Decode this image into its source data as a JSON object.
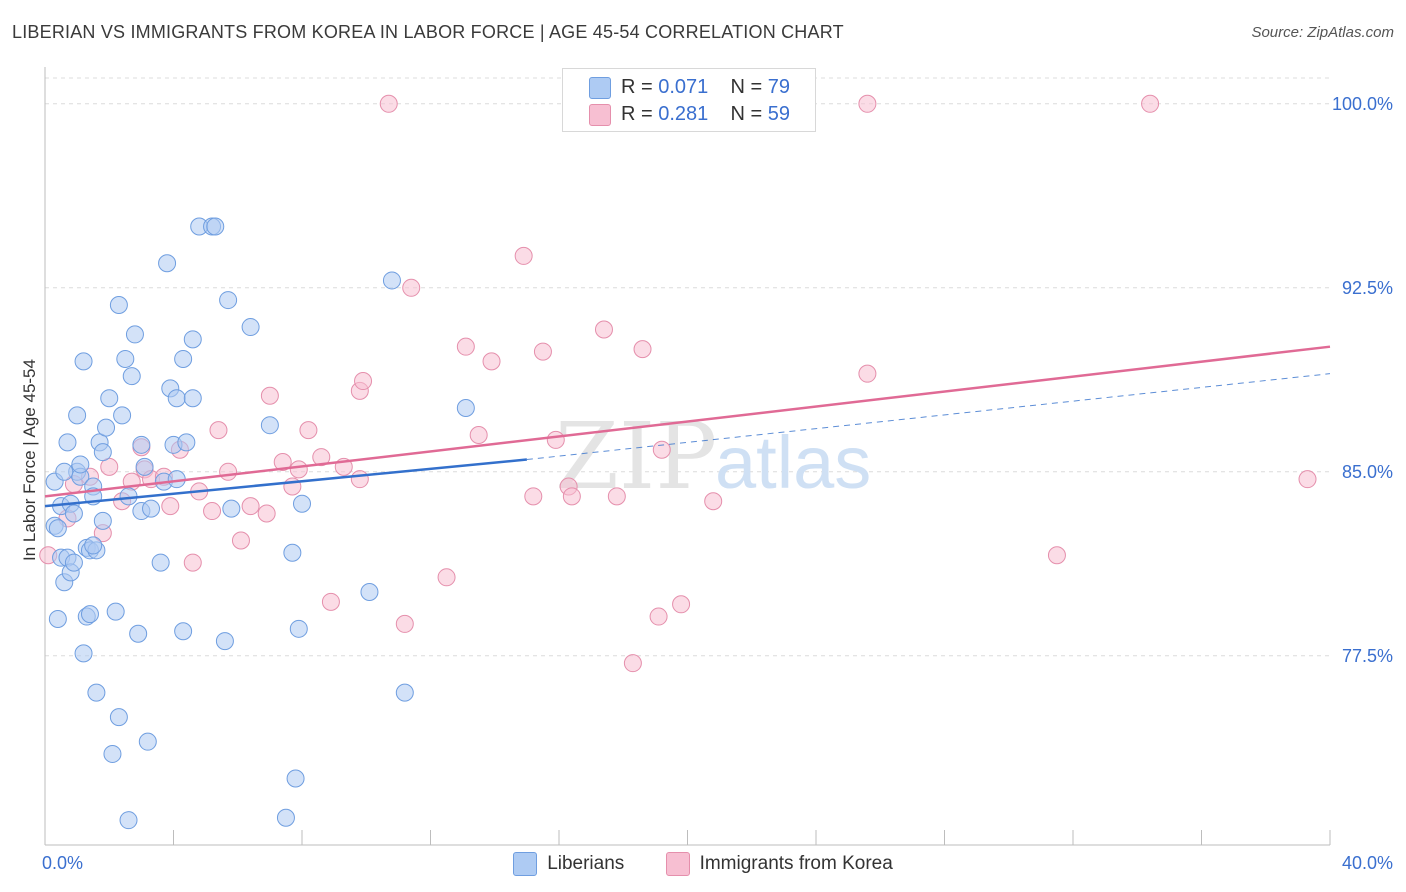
{
  "title": "LIBERIAN VS IMMIGRANTS FROM KOREA IN LABOR FORCE | AGE 45-54 CORRELATION CHART",
  "source": "Source: ZipAtlas.com",
  "watermark": {
    "zip": "ZIP",
    "atlas": "atlas"
  },
  "legend": {
    "series1": {
      "r_label": "R =",
      "r_value": "0.071",
      "n_label": "N =",
      "n_value": "79"
    },
    "series2": {
      "r_label": "R =",
      "r_value": "0.281",
      "n_label": "N =",
      "n_value": "59"
    }
  },
  "bottom_legend": {
    "series1": "Liberians",
    "series2": "Immigrants from Korea"
  },
  "colors": {
    "blue_fill": "#aecbf3",
    "blue_stroke": "#6f9ee0",
    "blue_line": "#3370cc",
    "pink_fill": "#f7bfd2",
    "pink_stroke": "#e58fac",
    "pink_line": "#e06a95",
    "tick_text": "#3a6fcf"
  },
  "chart_data": {
    "type": "scatter",
    "title": "LIBERIAN VS IMMIGRANTS FROM KOREA IN LABOR FORCE | AGE 45-54 CORRELATION CHART",
    "xlabel": "",
    "ylabel": "In Labor Force | Age 45-54",
    "xlim": [
      0,
      40
    ],
    "ylim": [
      70.4,
      101.5
    ],
    "x_tick_labels": [
      "0.0%",
      "40.0%"
    ],
    "y_ticks": [
      77.5,
      85.0,
      92.5,
      100.0
    ],
    "y_tick_labels": [
      "77.5%",
      "85.0%",
      "92.5%",
      "100.0%"
    ],
    "series": [
      {
        "name": "Liberians",
        "r": 0.071,
        "n": 79,
        "trend": {
          "x": [
            0,
            15
          ],
          "y": [
            83.6,
            85.5
          ]
        },
        "trend_extended": {
          "x": [
            15,
            40
          ],
          "y": [
            85.5,
            89.0
          ]
        },
        "points": [
          [
            0.3,
            84.6
          ],
          [
            0.3,
            82.8
          ],
          [
            0.4,
            79.0
          ],
          [
            0.4,
            82.7
          ],
          [
            0.5,
            83.6
          ],
          [
            0.5,
            81.5
          ],
          [
            0.6,
            80.5
          ],
          [
            0.7,
            81.5
          ],
          [
            0.7,
            86.2
          ],
          [
            0.8,
            80.9
          ],
          [
            0.8,
            83.7
          ],
          [
            0.9,
            83.3
          ],
          [
            0.9,
            81.3
          ],
          [
            1.0,
            85.0
          ],
          [
            1.0,
            87.3
          ],
          [
            1.1,
            84.8
          ],
          [
            1.1,
            85.3
          ],
          [
            1.2,
            89.5
          ],
          [
            1.2,
            77.6
          ],
          [
            1.3,
            79.1
          ],
          [
            1.3,
            81.9
          ],
          [
            1.4,
            81.8
          ],
          [
            1.4,
            79.2
          ],
          [
            1.5,
            84.4
          ],
          [
            1.5,
            84.0
          ],
          [
            1.6,
            81.8
          ],
          [
            1.6,
            76.0
          ],
          [
            1.7,
            86.2
          ],
          [
            1.8,
            83.0
          ],
          [
            1.8,
            85.8
          ],
          [
            1.9,
            86.8
          ],
          [
            2.0,
            88.0
          ],
          [
            2.1,
            73.5
          ],
          [
            2.2,
            79.3
          ],
          [
            2.3,
            75.0
          ],
          [
            2.3,
            91.8
          ],
          [
            2.4,
            87.3
          ],
          [
            2.5,
            89.6
          ],
          [
            2.6,
            84.0
          ],
          [
            2.6,
            70.8
          ],
          [
            2.7,
            88.9
          ],
          [
            2.8,
            90.6
          ],
          [
            2.9,
            78.4
          ],
          [
            3.0,
            86.1
          ],
          [
            3.0,
            83.4
          ],
          [
            3.1,
            85.2
          ],
          [
            3.2,
            74.0
          ],
          [
            3.3,
            83.5
          ],
          [
            3.6,
            81.3
          ],
          [
            3.7,
            84.6
          ],
          [
            3.8,
            93.5
          ],
          [
            3.9,
            88.4
          ],
          [
            4.0,
            86.1
          ],
          [
            4.1,
            84.7
          ],
          [
            4.1,
            88.0
          ],
          [
            4.3,
            89.6
          ],
          [
            4.3,
            78.5
          ],
          [
            4.4,
            86.2
          ],
          [
            4.6,
            90.4
          ],
          [
            4.6,
            88.0
          ],
          [
            4.8,
            95.0
          ],
          [
            5.2,
            95.0
          ],
          [
            5.3,
            95.0
          ],
          [
            5.6,
            78.1
          ],
          [
            5.7,
            92.0
          ],
          [
            5.8,
            83.5
          ],
          [
            6.4,
            90.9
          ],
          [
            7.0,
            86.9
          ],
          [
            7.5,
            70.9
          ],
          [
            7.7,
            81.7
          ],
          [
            7.8,
            72.5
          ],
          [
            7.9,
            78.6
          ],
          [
            8.0,
            83.7
          ],
          [
            10.1,
            80.1
          ],
          [
            10.8,
            92.8
          ],
          [
            11.2,
            76.0
          ],
          [
            13.1,
            87.6
          ],
          [
            1.5,
            82.0
          ],
          [
            0.6,
            85.0
          ]
        ]
      },
      {
        "name": "Immigrants from Korea",
        "r": 0.281,
        "n": 59,
        "trend": {
          "x": [
            0,
            40
          ],
          "y": [
            84.0,
            90.1
          ]
        },
        "points": [
          [
            0.1,
            81.6
          ],
          [
            0.7,
            83.1
          ],
          [
            0.9,
            84.5
          ],
          [
            1.4,
            84.8
          ],
          [
            1.8,
            82.5
          ],
          [
            2.0,
            85.2
          ],
          [
            2.4,
            83.8
          ],
          [
            2.7,
            84.6
          ],
          [
            3.0,
            86.0
          ],
          [
            3.1,
            85.1
          ],
          [
            3.3,
            84.7
          ],
          [
            3.7,
            84.8
          ],
          [
            3.9,
            83.6
          ],
          [
            4.2,
            85.9
          ],
          [
            4.6,
            81.3
          ],
          [
            4.8,
            84.2
          ],
          [
            5.2,
            83.4
          ],
          [
            5.4,
            86.7
          ],
          [
            5.7,
            85.0
          ],
          [
            6.1,
            82.2
          ],
          [
            6.4,
            83.6
          ],
          [
            6.9,
            83.3
          ],
          [
            7.0,
            88.1
          ],
          [
            7.4,
            85.4
          ],
          [
            7.7,
            84.4
          ],
          [
            7.9,
            85.1
          ],
          [
            8.2,
            86.7
          ],
          [
            8.6,
            85.6
          ],
          [
            8.9,
            79.7
          ],
          [
            9.3,
            85.2
          ],
          [
            9.8,
            84.7
          ],
          [
            9.8,
            88.3
          ],
          [
            9.9,
            88.7
          ],
          [
            10.7,
            100.0
          ],
          [
            11.2,
            78.8
          ],
          [
            11.4,
            92.5
          ],
          [
            12.5,
            80.7
          ],
          [
            13.1,
            90.1
          ],
          [
            13.5,
            86.5
          ],
          [
            13.9,
            89.5
          ],
          [
            14.9,
            93.8
          ],
          [
            15.2,
            84.0
          ],
          [
            15.5,
            89.9
          ],
          [
            15.9,
            86.3
          ],
          [
            16.3,
            84.4
          ],
          [
            16.4,
            84.0
          ],
          [
            17.4,
            90.8
          ],
          [
            17.8,
            84.0
          ],
          [
            18.3,
            77.2
          ],
          [
            18.6,
            90.0
          ],
          [
            19.1,
            79.1
          ],
          [
            19.2,
            85.9
          ],
          [
            19.8,
            79.6
          ],
          [
            20.8,
            83.8
          ],
          [
            25.6,
            89.0
          ],
          [
            25.6,
            100.0
          ],
          [
            31.5,
            81.6
          ],
          [
            34.4,
            100.0
          ],
          [
            39.3,
            84.7
          ]
        ]
      }
    ]
  }
}
